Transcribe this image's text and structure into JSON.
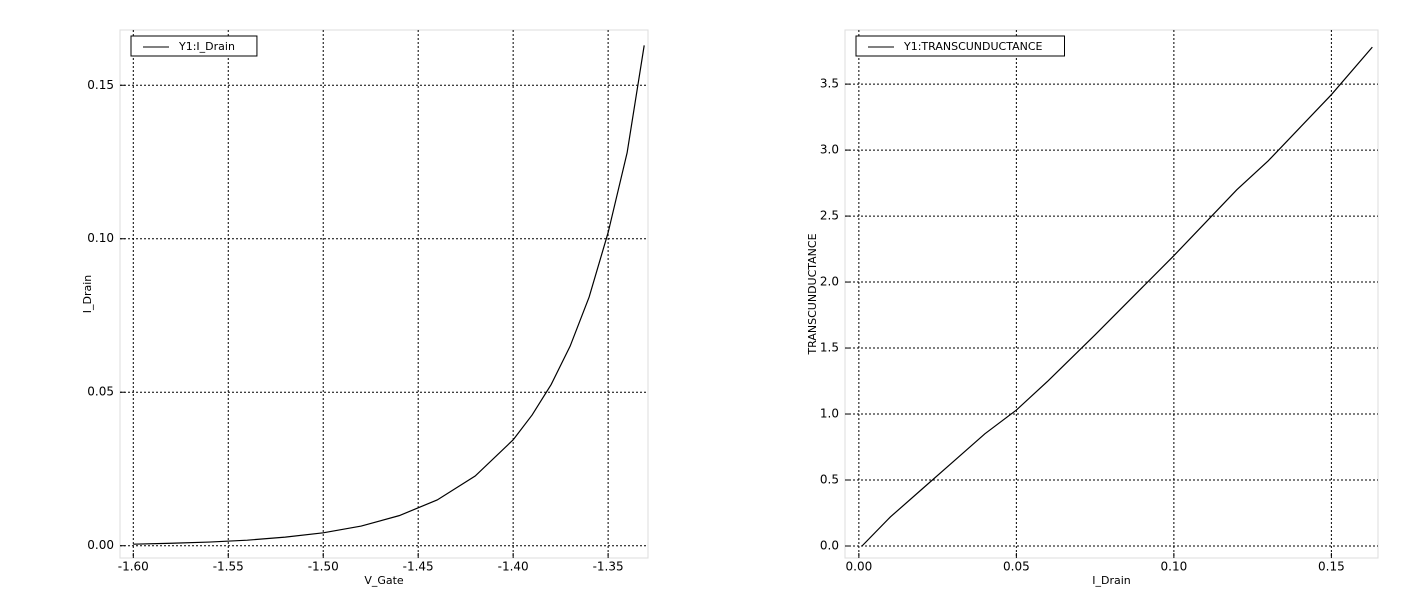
{
  "chart_data": [
    {
      "type": "line",
      "xlabel": "V_Gate",
      "ylabel": "I_Drain",
      "legend": "upper left",
      "grid": true,
      "x": [
        -1.6,
        -1.58,
        -1.56,
        -1.54,
        -1.52,
        -1.5,
        -1.48,
        -1.46,
        -1.44,
        -1.42,
        -1.4,
        -1.39,
        -1.38,
        -1.37,
        -1.36,
        -1.35,
        -1.34,
        -1.331
      ],
      "series": [
        {
          "name": "Y1:I_Drain",
          "color": "#000000",
          "values": [
            0.0005,
            0.0008,
            0.0012,
            0.0018,
            0.0028,
            0.0042,
            0.0064,
            0.0098,
            0.0149,
            0.0227,
            0.0345,
            0.0426,
            0.0525,
            0.065,
            0.081,
            0.102,
            0.128,
            0.163
          ]
        }
      ],
      "xlim": [
        -1.607,
        -1.329
      ],
      "ylim": [
        -0.004,
        0.168
      ],
      "xticks": [
        {
          "value": -1.6,
          "label": "-1.60"
        },
        -1.55,
        {
          "value": -1.5,
          "label": "-1.50"
        },
        -1.45,
        {
          "value": -1.4,
          "label": "-1.40"
        },
        -1.35
      ],
      "yticks": [
        {
          "value": 0,
          "label": "0.00"
        },
        0.05,
        {
          "value": 0.1,
          "label": "0.10"
        },
        0.15
      ]
    },
    {
      "type": "line",
      "xlabel": "I_Drain",
      "ylabel": "TRANSCUNDUCTANCE",
      "legend": "upper left",
      "grid": true,
      "x": [
        0.001,
        0.01,
        0.02,
        0.03,
        0.04,
        0.05,
        0.06,
        0.075,
        0.09,
        0.1,
        0.11,
        0.12,
        0.13,
        0.14,
        0.15,
        0.163
      ],
      "series": [
        {
          "name": "Y1:TRANSCUNDUCTANCE",
          "color": "#000000",
          "values": [
            0.0,
            0.22,
            0.43,
            0.64,
            0.85,
            1.03,
            1.25,
            1.6,
            1.96,
            2.2,
            2.45,
            2.7,
            2.92,
            3.17,
            3.42,
            3.78
          ]
        }
      ],
      "xlim": [
        -0.0044,
        0.1648
      ],
      "ylim": [
        -0.091,
        3.91
      ],
      "xticks": [
        {
          "value": 0,
          "label": "0.00"
        },
        0.05,
        {
          "value": 0.1,
          "label": "0.10"
        },
        0.15
      ],
      "yticks": [
        {
          "value": 0,
          "label": "0.0"
        },
        0.5,
        {
          "value": 1,
          "label": "1.0"
        },
        1.5,
        {
          "value": 2,
          "label": "2.0"
        },
        2.5,
        {
          "value": 3,
          "label": "3.0"
        },
        3.5
      ]
    }
  ]
}
